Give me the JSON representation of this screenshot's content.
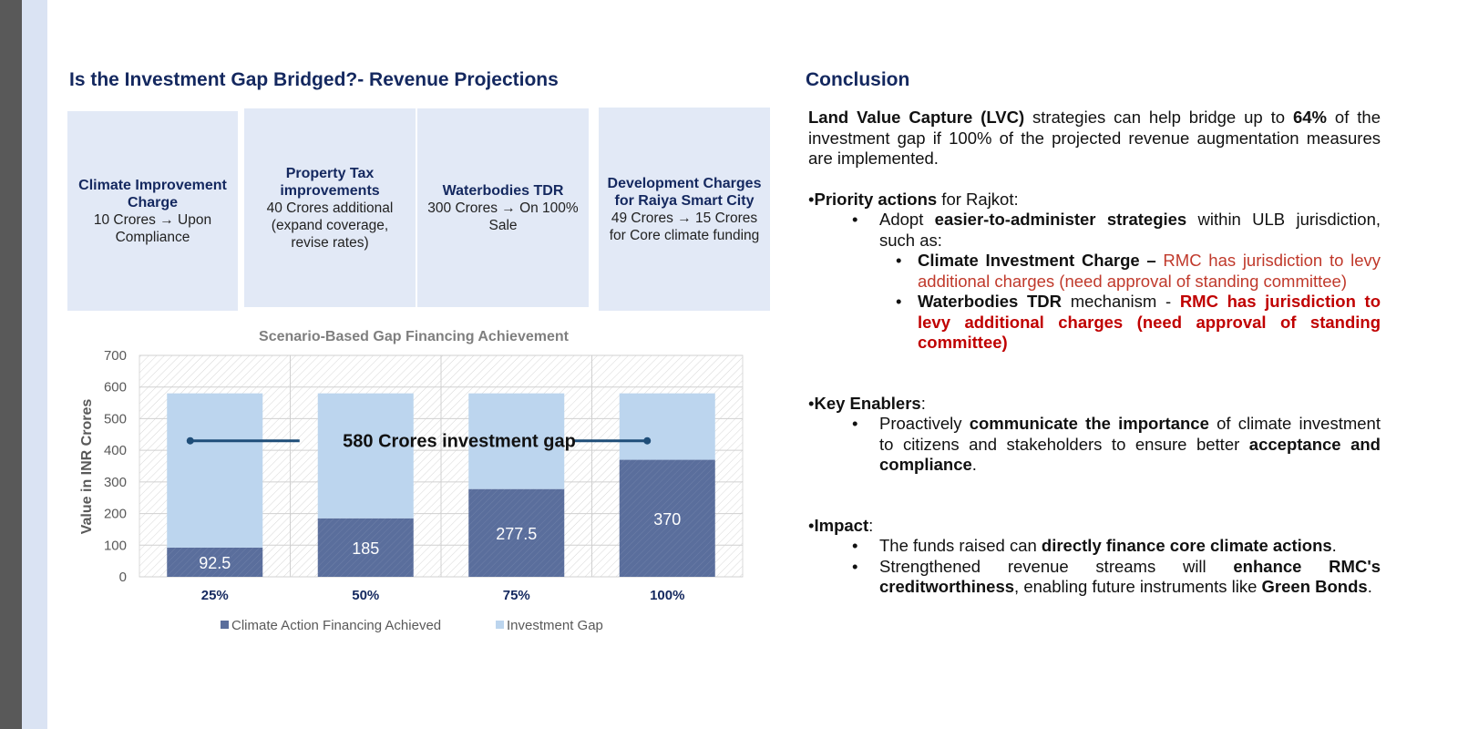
{
  "left_title": "Is the Investment Gap Bridged?- Revenue Projections",
  "right_title": "Conclusion",
  "boxes": [
    {
      "title": "Climate Improvement Charge",
      "text": "10 Crores → Upon Compliance"
    },
    {
      "title": "Property Tax improvements",
      "text": "40 Crores additional (expand coverage, revise rates)"
    },
    {
      "title": "Waterbodies TDR",
      "text": "300 Crores → On 100% Sale"
    },
    {
      "title": "Development Charges for Raiya Smart City",
      "text": "49 Crores → 15 Crores for Core climate funding"
    }
  ],
  "chart_data": {
    "type": "bar",
    "stacked": true,
    "title": "Scenario-Based Gap Financing Achievement",
    "ylabel": "Value in INR Crores",
    "xlabel": "",
    "ylim": [
      0,
      700
    ],
    "yticks": [
      0,
      100,
      200,
      300,
      400,
      500,
      600,
      700
    ],
    "categories": [
      "25%",
      "50%",
      "75%",
      "100%"
    ],
    "series": [
      {
        "name": "Climate Action Financing Achieved",
        "values": [
          92.5,
          185,
          277.5,
          370
        ],
        "color": "#5a6e9c"
      },
      {
        "name": "Investment Gap",
        "values": [
          487.5,
          395,
          302.5,
          210
        ],
        "color": "#bcd5ee"
      }
    ],
    "data_labels": [
      "92.5",
      "185",
      "277.5",
      "370"
    ],
    "annotation": {
      "text": "580 Crores investment gap",
      "value": 430
    },
    "legend": "bottom",
    "grid": true
  },
  "conclusion": {
    "p1_bold1": "Land Value Capture (LVC)",
    "p1_text1": " strategies can help bridge up to ",
    "p1_bold2": "64%",
    "p1_text2": " of the investment gap if 100% of the projected revenue augmentation measures are implemented.",
    "priority_bold": "Priority actions",
    "priority_text": " for Rajkot:",
    "adopt_text1": "Adopt ",
    "adopt_bold": "easier-to-administer strategies",
    "adopt_text2": " within ULB jurisdiction, such as:",
    "cic_bold": "Climate Investment Charge – ",
    "cic_red": "RMC has jurisdiction to levy additional charges (need approval of standing committee)",
    "wb_bold": "Waterbodies TDR",
    "wb_text": " mechanism - ",
    "wb_red": "RMC has jurisdiction to levy additional charges (need approval of standing committee)",
    "enablers_bold": "Key Enablers",
    "enablers_text": ":",
    "en_text1": "Proactively ",
    "en_bold1": "communicate the importance",
    "en_text2": " of climate investment to citizens and stakeholders to ensure better ",
    "en_bold2": "acceptance and compliance",
    "en_text3": ".",
    "impact_bold": "Impact",
    "impact_text": ":",
    "im1_text1": "The funds raised can ",
    "im1_bold": "directly finance core climate actions",
    "im1_text2": ".",
    "im2_text1": "Strengthened revenue streams will ",
    "im2_bold1": "enhance RMC's creditworthiness",
    "im2_text2": ", enabling future instruments like ",
    "im2_bold2": "Green Bonds",
    "im2_text3": "."
  }
}
